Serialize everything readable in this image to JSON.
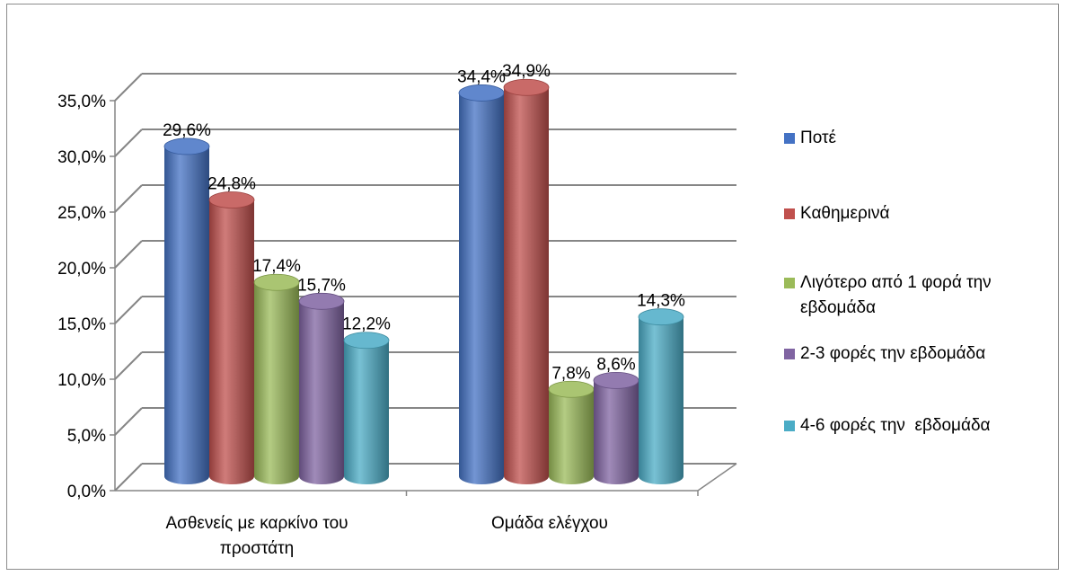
{
  "chart_data": {
    "type": "bar",
    "title": "",
    "xlabel": "",
    "ylabel": "",
    "categories": [
      "Ασθενείς με καρκίνο του\nπροστάτη",
      "Ομάδα ελέγχου"
    ],
    "series": [
      {
        "name": "Ποτέ",
        "values": [
          29.6,
          34.4
        ],
        "labels": [
          "29,6%",
          "34,4%"
        ],
        "color": "#4472C4"
      },
      {
        "name": "Καθημερινά",
        "values": [
          24.8,
          34.9
        ],
        "labels": [
          "24,8%",
          "34,9%"
        ],
        "color": "#C0504D"
      },
      {
        "name": "Λιγότερο από 1 φορά την\nεβδομάδα",
        "values": [
          17.4,
          7.8
        ],
        "labels": [
          "17,4%",
          "7,8%"
        ],
        "color": "#9BBB59"
      },
      {
        "name": "2-3 φορές την εβδομάδα",
        "values": [
          15.7,
          8.6
        ],
        "labels": [
          "15,7%",
          "8,6%"
        ],
        "color": "#8064A2"
      },
      {
        "name": "4-6 φορές την  εβδομάδα",
        "values": [
          12.2,
          14.3
        ],
        "labels": [
          "12,2%",
          "14,3%"
        ],
        "color": "#4BACC6"
      }
    ],
    "y_ticks": [
      "0,0%",
      "5,0%",
      "10,0%",
      "15,0%",
      "20,0%",
      "25,0%",
      "30,0%",
      "35,0%"
    ],
    "ylim": [
      0,
      35
    ],
    "grid": true,
    "legend_position": "right",
    "style": "3d-cylinder"
  }
}
